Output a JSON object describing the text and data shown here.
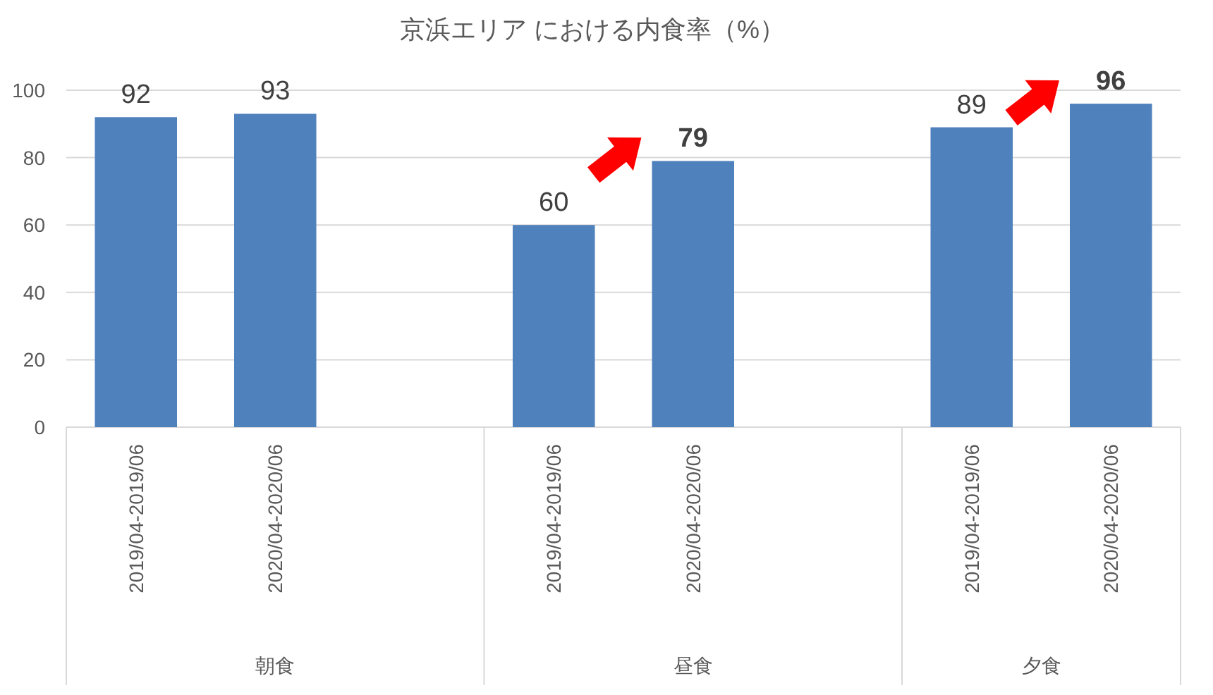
{
  "chart_data": {
    "type": "bar",
    "title": "京浜エリア における内食率（%）",
    "categories": [
      "2019/04-2019/06",
      "2020/04-2020/06",
      null,
      "2019/04-2019/06",
      "2020/04-2020/06",
      null,
      "2019/04-2019/06",
      "2020/04-2020/06"
    ],
    "values": [
      92,
      93,
      null,
      60,
      79,
      null,
      89,
      96
    ],
    "color": "#4f81bd",
    "ylim": [
      0,
      100
    ],
    "yticks": [
      0,
      20,
      40,
      60,
      80,
      100
    ],
    "grid": "y",
    "data_labels": true,
    "annotations": [
      "朝食",
      "昼食",
      "夕食"
    ]
  }
}
